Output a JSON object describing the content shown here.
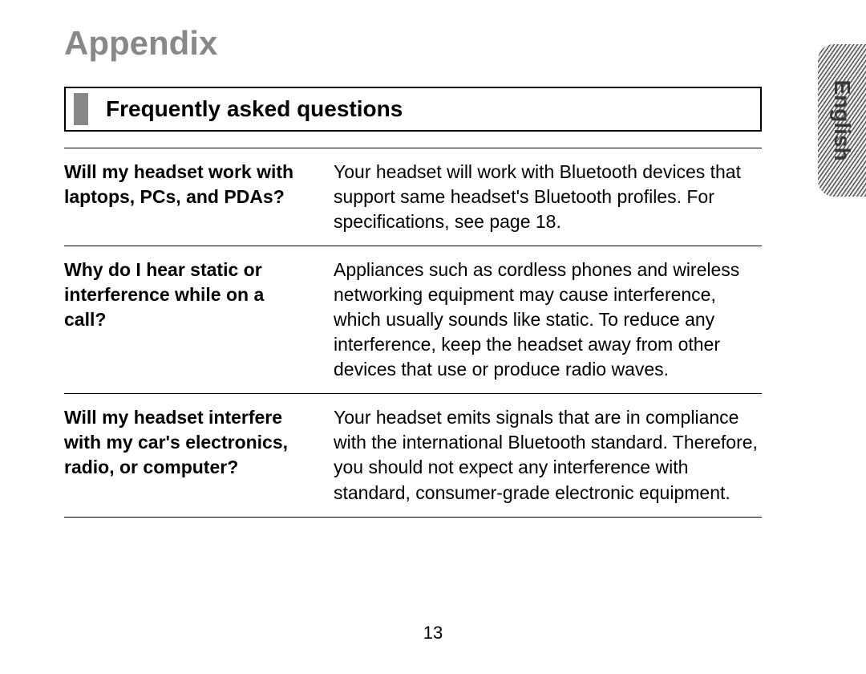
{
  "page": {
    "title": "Appendix",
    "page_number": "13",
    "language_tab": "English",
    "title_color": "#888888",
    "border_color": "#000000",
    "marker_color": "#888888"
  },
  "section": {
    "title": "Frequently asked questions"
  },
  "faq": {
    "rows": [
      {
        "question": "Will my headset work with laptops, PCs, and PDAs?",
        "answer": "Your headset will work with Bluetooth devices that support same headset's Bluetooth profiles. For specifications, see page 18."
      },
      {
        "question": "Why do I hear static or interference while on a call?",
        "answer": "Appliances such as cordless phones and wireless networking equipment may cause interference, which usually sounds like static. To reduce any interference, keep the headset away from other devices that use or produce radio waves."
      },
      {
        "question": "Will my headset interfere with my car's electronics, radio, or computer?",
        "answer": "Your headset emits signals that are in compliance with the international Bluetooth standard. Therefore, you should not expect any interference with standard, consumer-grade electronic equipment."
      }
    ]
  }
}
